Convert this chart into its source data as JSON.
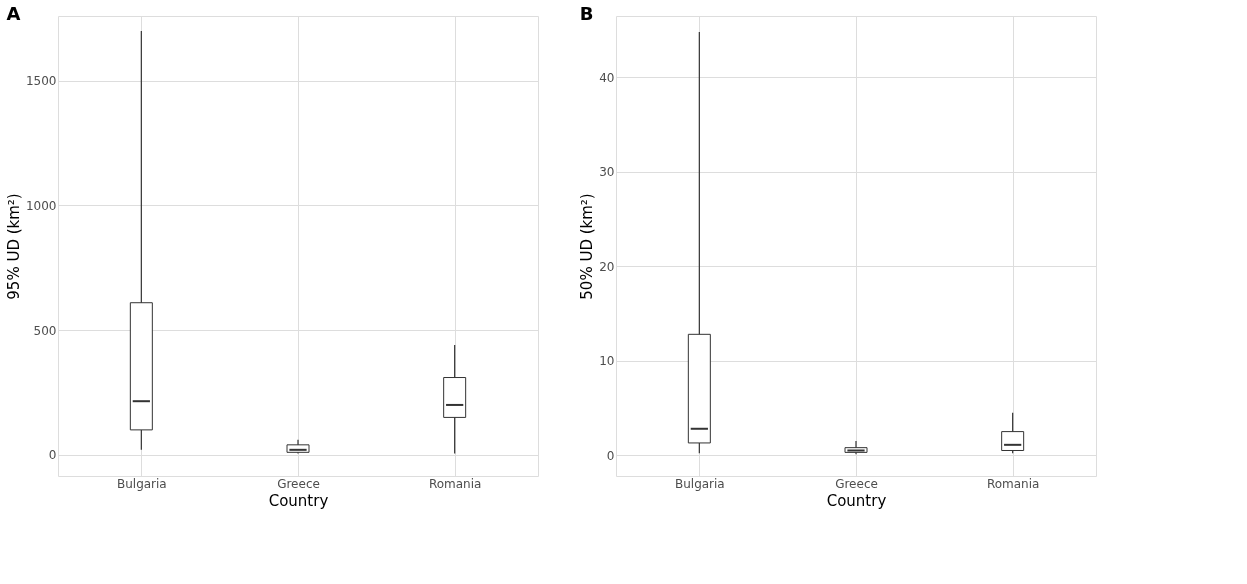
{
  "chart_data": [
    {
      "type": "box",
      "title": "A",
      "xlabel": "Country",
      "ylabel": "95% UD (km²)",
      "categories": [
        "Bulgaria",
        "Greece",
        "Romania"
      ],
      "ylim": [
        -85,
        1760
      ],
      "yticks": [
        0,
        500,
        1000,
        1500
      ],
      "grid": true,
      "series": [
        {
          "color": "#ffffff",
          "boxes": [
            {
              "low": 20,
              "q1": 100,
              "median": 215,
              "q3": 610,
              "high": 1700
            },
            {
              "low": 5,
              "q1": 10,
              "median": 20,
              "q3": 40,
              "high": 60
            },
            {
              "low": 5,
              "q1": 150,
              "median": 200,
              "q3": 310,
              "high": 440
            }
          ]
        }
      ]
    },
    {
      "type": "box",
      "title": "B",
      "xlabel": "Country",
      "ylabel": "50% UD (km²)",
      "categories": [
        "Bulgaria",
        "Greece",
        "Romania"
      ],
      "ylim": [
        -2.2,
        46.5
      ],
      "yticks": [
        0,
        10,
        20,
        30,
        40
      ],
      "grid": true,
      "series": [
        {
          "color": "#ffffff",
          "boxes": [
            {
              "low": 0.2,
              "q1": 1.3,
              "median": 2.8,
              "q3": 12.8,
              "high": 44.8
            },
            {
              "low": 0.1,
              "q1": 0.3,
              "median": 0.5,
              "q3": 0.8,
              "high": 1.5
            },
            {
              "low": 0.2,
              "q1": 0.5,
              "median": 1.1,
              "q3": 2.5,
              "high": 4.5
            }
          ]
        }
      ]
    }
  ]
}
